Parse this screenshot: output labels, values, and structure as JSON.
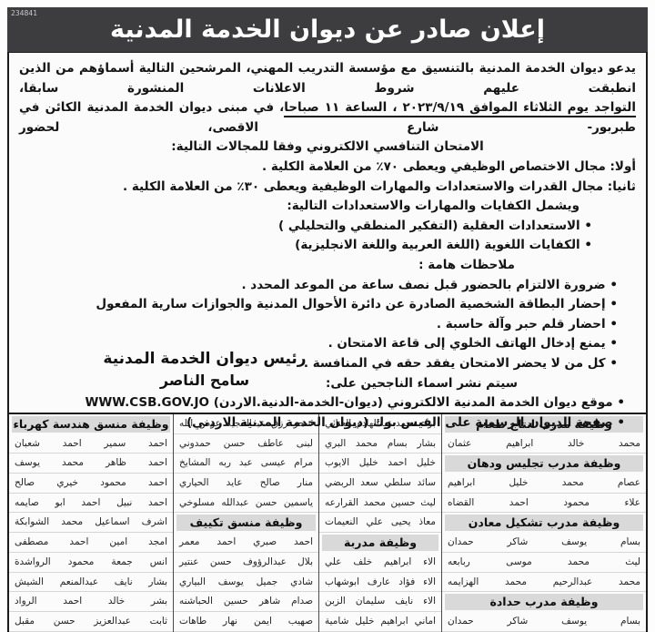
{
  "meta": {
    "ad_number": "234841"
  },
  "header": {
    "title": "إعلان صادر عن ديوان الخدمة المدنية",
    "band_color": "#3d3d3f"
  },
  "body": {
    "intro_line1": "يدعو ديوان الخدمة المدنية بالتنسيق مع مؤسسة التدريب المهني، المرشحين التالية أسماؤهم من الذين انطبقت عليهم شروط الاعلانات المنشورة سابقا،",
    "intro_line2_underlined": "التواجد يوم الثلاثاء الموافق ٢٠٢٣/٩/١٩ ، الساعة ١١ صباحا",
    "intro_line2_rest": "، في مبنى ديوان الخدمة المدنية الكائن في طبربور- شارع الاقصى، لحضور",
    "intro_line3": "الامتحان التنافسي الالكتروني وفقا للمجالات التالية:",
    "first_item": "أولا: مجال الاختصاص الوظيفي ويعطى ٧٠٪ من العلامة الكلية .",
    "second_item": "ثانيا: مجال القدرات والاستعدادات والمهارات الوظيفية ويعطى ٣٠٪ من العلامة الكلية .",
    "skills_intro": "ويشمل الكفايات والمهارات والاستعدادات التالية:",
    "skills": [
      "الاستعدادات العقلية (التفكير المنطقي والتحليلي )",
      "الكفايات اللغوية (اللغة العربية واللغة الانجليزية)"
    ],
    "notes_title": "ملاحظات هامة :",
    "notes": [
      "ضرورة الالتزام بالحضور قبل نصف ساعة من الموعد المحدد .",
      "إحضار البطاقة الشخصية الصادرة عن دائرة الأحوال المدنية والجوازات سارية المفعول",
      "احضار قلم حبر وآلة حاسبة .",
      "يمنع إدخال الهاتف الخلوي إلى قاعة الامتحان .",
      "كل من لا يحضر الامتحان يفقد حقه في المنافسة ."
    ],
    "publish_title": "سيتم نشر اسماء الناجحين على:",
    "publish": [
      "موقع ديوان الخدمة المدنية الالكتروني (ديوان-الخدمة-الدنية.الاردن) WWW.CSB.GOV.JO",
      "صفحة الديوان الرسمية على الفيس بوك (ديوان الخدمة المدنية الاردني)"
    ]
  },
  "signature": {
    "title": "رئيس ديوان الخدمة المدنية",
    "name": "سامح الناصر"
  },
  "table": {
    "header_bg": "#d9d9d9",
    "columns": [
      {
        "items": [
          {
            "type": "header",
            "text": "وظيفة مدرب انتاج طعام"
          },
          {
            "type": "name",
            "text": "محمد خالد ابراهيم عثمان"
          },
          {
            "type": "header",
            "text": "وظيفة مدرب تجليس ودهان مركبات"
          },
          {
            "type": "name",
            "text": "عصام محمد خليل ابراهيم"
          },
          {
            "type": "name",
            "text": "علاء محمود احمد القضاه"
          },
          {
            "type": "header",
            "text": "وظيفة مدرب تشكيل معادن"
          },
          {
            "type": "name",
            "text": "بسام يوسف شاكر حمدان"
          },
          {
            "type": "name",
            "text": "ليث محمد موسى ربابعه"
          },
          {
            "type": "name",
            "text": "محمد عبدالرحيم محمد الهزايمه"
          },
          {
            "type": "header",
            "text": "وظيفة مدرب حدادة"
          },
          {
            "type": "name",
            "text": "بسام يوسف شاكر حمدان"
          }
        ]
      },
      {
        "items": [
          {
            "type": "name",
            "text": "براء محمد عبدالهادي العناني"
          },
          {
            "type": "name",
            "text": "بشار بسام محمد البري"
          },
          {
            "type": "name",
            "text": "خليل احمد خليل الايوب"
          },
          {
            "type": "name",
            "text": "سائد سلطي سعد الربضي"
          },
          {
            "type": "name",
            "text": "ليث حسين محمد القرارعه"
          },
          {
            "type": "name",
            "text": "معاذ يحيى علي النعيمات"
          },
          {
            "type": "header",
            "text": "وظيفة مدربة حاسوب"
          },
          {
            "type": "name",
            "text": "الاء ابراهيم خلف علي"
          },
          {
            "type": "name",
            "text": "الاء فؤاد عارف ابوشهاب"
          },
          {
            "type": "name",
            "text": "الاء نايف سليمان الزبن"
          },
          {
            "type": "name",
            "text": "اماني ابراهيم خليل شامية"
          }
        ]
      },
      {
        "items": [
          {
            "type": "name",
            "text": "سحر رزق عبدالمجيد عوض الله"
          },
          {
            "type": "name",
            "text": "لبنى عاطف حسن حمدوني"
          },
          {
            "type": "name",
            "text": "مرام عيسى عبد ربه المشايخ"
          },
          {
            "type": "name",
            "text": "منار صالح عايد الحياري"
          },
          {
            "type": "name",
            "text": "ياسمين حسن عبدالله مسلوخي"
          },
          {
            "type": "header",
            "text": "وظيفة منسق تكييف وتبريد"
          },
          {
            "type": "name",
            "text": "احمد صبري احمد معمر"
          },
          {
            "type": "name",
            "text": "بلال عبدالرؤوف حسن عنتير"
          },
          {
            "type": "name",
            "text": "شادي جميل يوسف البياري"
          },
          {
            "type": "name",
            "text": "صدام شاهر حسين الحباشنه"
          },
          {
            "type": "name",
            "text": "صهيب ايمن نهار طاهات"
          }
        ]
      },
      {
        "items": [
          {
            "type": "header",
            "text": "وظيفة منسق هندسة كهرباء"
          },
          {
            "type": "name",
            "text": "احمد سمير احمد شعبان"
          },
          {
            "type": "name",
            "text": "احمد ظاهر محمد يوسف"
          },
          {
            "type": "name",
            "text": "احمد محمود خيري صالح"
          },
          {
            "type": "name",
            "text": "احمد نبيل احمد ابو صايمه"
          },
          {
            "type": "name",
            "text": "اشرف اسماعيل محمد الشوابكة"
          },
          {
            "type": "name",
            "text": "امجد امين احمد مصطفى"
          },
          {
            "type": "name",
            "text": "انس جمعة محمود الرواشدة"
          },
          {
            "type": "name",
            "text": "بشار نايف عبدالمنعم الشيش"
          },
          {
            "type": "name",
            "text": "بشر خالد احمد الرواد"
          },
          {
            "type": "name",
            "text": "ثابت عبدالعزيز حسن مقبل"
          }
        ]
      }
    ]
  }
}
